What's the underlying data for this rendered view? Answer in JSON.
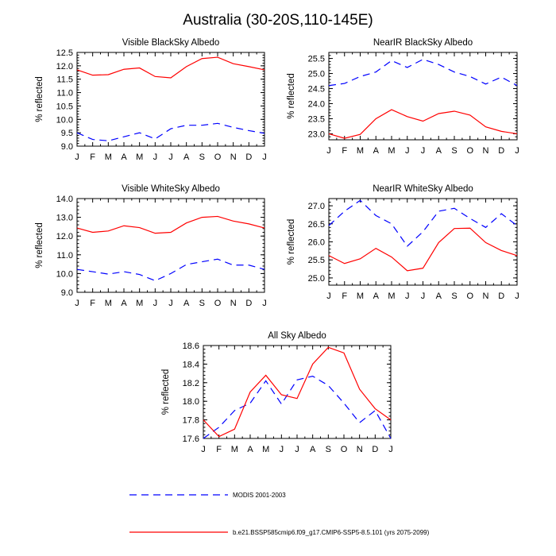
{
  "figure": {
    "title": "Australia (30-20S,110-145E)",
    "legend": {
      "position": "bottom",
      "entries": [
        {
          "label": "MODIS 2001-2003",
          "color": "#0000ff",
          "dash": "dashed"
        },
        {
          "label": "b.e21.BSSP585cmip6.f09_g17.CMIP6-SSP5-8.5.101 (yrs 2075-2099)",
          "color": "#ff0000",
          "dash": "solid"
        }
      ]
    },
    "colors": {
      "modis": "#0000ff",
      "model": "#ff0000"
    }
  },
  "chart_data": [
    {
      "type": "line",
      "title": "Visible BlackSky Albedo",
      "xlabel": "",
      "ylabel": "% reflected",
      "categories": [
        "J",
        "F",
        "M",
        "A",
        "M",
        "J",
        "J",
        "A",
        "S",
        "O",
        "N",
        "D",
        "J"
      ],
      "ylim": [
        9.0,
        12.5
      ],
      "yticks": [
        9.0,
        9.5,
        10.0,
        10.5,
        11.0,
        11.5,
        12.0,
        12.5
      ],
      "series": [
        {
          "key": "modis",
          "values": [
            9.5,
            9.25,
            9.2,
            9.35,
            9.5,
            9.27,
            9.65,
            9.78,
            9.78,
            9.85,
            9.7,
            9.58,
            9.48
          ]
        },
        {
          "key": "model",
          "values": [
            11.85,
            11.65,
            11.67,
            11.87,
            11.92,
            11.6,
            11.55,
            11.97,
            12.27,
            12.32,
            12.08,
            11.97,
            11.85
          ]
        }
      ]
    },
    {
      "type": "line",
      "title": "NearIR BlackSky Albedo",
      "xlabel": "",
      "ylabel": "% reflected",
      "categories": [
        "J",
        "F",
        "M",
        "A",
        "M",
        "J",
        "J",
        "A",
        "S",
        "O",
        "N",
        "D",
        "J"
      ],
      "ylim": [
        22.8,
        25.7
      ],
      "yticks": [
        23.0,
        23.5,
        24.0,
        24.5,
        25.0,
        25.5
      ],
      "series": [
        {
          "key": "modis",
          "values": [
            24.6,
            24.67,
            24.9,
            25.05,
            25.43,
            25.2,
            25.47,
            25.3,
            25.05,
            24.9,
            24.65,
            24.88,
            24.6
          ]
        },
        {
          "key": "model",
          "values": [
            23.0,
            22.85,
            22.98,
            23.5,
            23.8,
            23.57,
            23.42,
            23.67,
            23.75,
            23.62,
            23.23,
            23.08,
            23.0
          ]
        }
      ]
    },
    {
      "type": "line",
      "title": "Visible WhiteSky Albedo",
      "xlabel": "",
      "ylabel": "% reflected",
      "categories": [
        "J",
        "F",
        "M",
        "A",
        "M",
        "J",
        "J",
        "A",
        "S",
        "O",
        "N",
        "D",
        "J"
      ],
      "ylim": [
        9.0,
        14.0
      ],
      "yticks": [
        9.0,
        10.0,
        11.0,
        12.0,
        13.0,
        14.0
      ],
      "series": [
        {
          "key": "modis",
          "values": [
            10.22,
            10.1,
            9.97,
            10.1,
            9.95,
            9.62,
            10.0,
            10.48,
            10.63,
            10.77,
            10.45,
            10.45,
            10.22
          ]
        },
        {
          "key": "model",
          "values": [
            12.43,
            12.2,
            12.27,
            12.55,
            12.45,
            12.15,
            12.2,
            12.7,
            13.0,
            13.05,
            12.8,
            12.65,
            12.43
          ]
        }
      ]
    },
    {
      "type": "line",
      "title": "NearIR WhiteSky Albedo",
      "xlabel": "",
      "ylabel": "% reflected",
      "categories": [
        "J",
        "F",
        "M",
        "A",
        "M",
        "J",
        "J",
        "A",
        "S",
        "O",
        "N",
        "D",
        "J"
      ],
      "ylim": [
        24.8,
        27.2
      ],
      "yticks": [
        25.0,
        25.5,
        26.0,
        26.5,
        27.0
      ],
      "series": [
        {
          "key": "modis",
          "values": [
            26.45,
            26.85,
            27.15,
            26.73,
            26.5,
            25.88,
            26.28,
            26.85,
            26.93,
            26.65,
            26.4,
            26.78,
            26.45
          ]
        },
        {
          "key": "model",
          "values": [
            25.62,
            25.4,
            25.53,
            25.82,
            25.58,
            25.2,
            25.27,
            25.98,
            26.37,
            26.38,
            25.98,
            25.76,
            25.62
          ]
        }
      ]
    },
    {
      "type": "line",
      "title": "All Sky Albedo",
      "xlabel": "",
      "ylabel": "% reflected",
      "categories": [
        "J",
        "F",
        "M",
        "A",
        "M",
        "J",
        "J",
        "A",
        "S",
        "O",
        "N",
        "D",
        "J"
      ],
      "ylim": [
        17.6,
        18.6
      ],
      "yticks": [
        17.6,
        17.8,
        18.0,
        18.2,
        18.4,
        18.6
      ],
      "series": [
        {
          "key": "modis",
          "values": [
            17.6,
            17.72,
            17.9,
            17.98,
            18.22,
            17.97,
            18.23,
            18.27,
            18.17,
            17.98,
            17.77,
            17.9,
            17.6
          ]
        },
        {
          "key": "model",
          "values": [
            17.8,
            17.62,
            17.7,
            18.1,
            18.28,
            18.07,
            18.03,
            18.4,
            18.58,
            18.52,
            18.13,
            17.92,
            17.8
          ]
        }
      ]
    }
  ]
}
